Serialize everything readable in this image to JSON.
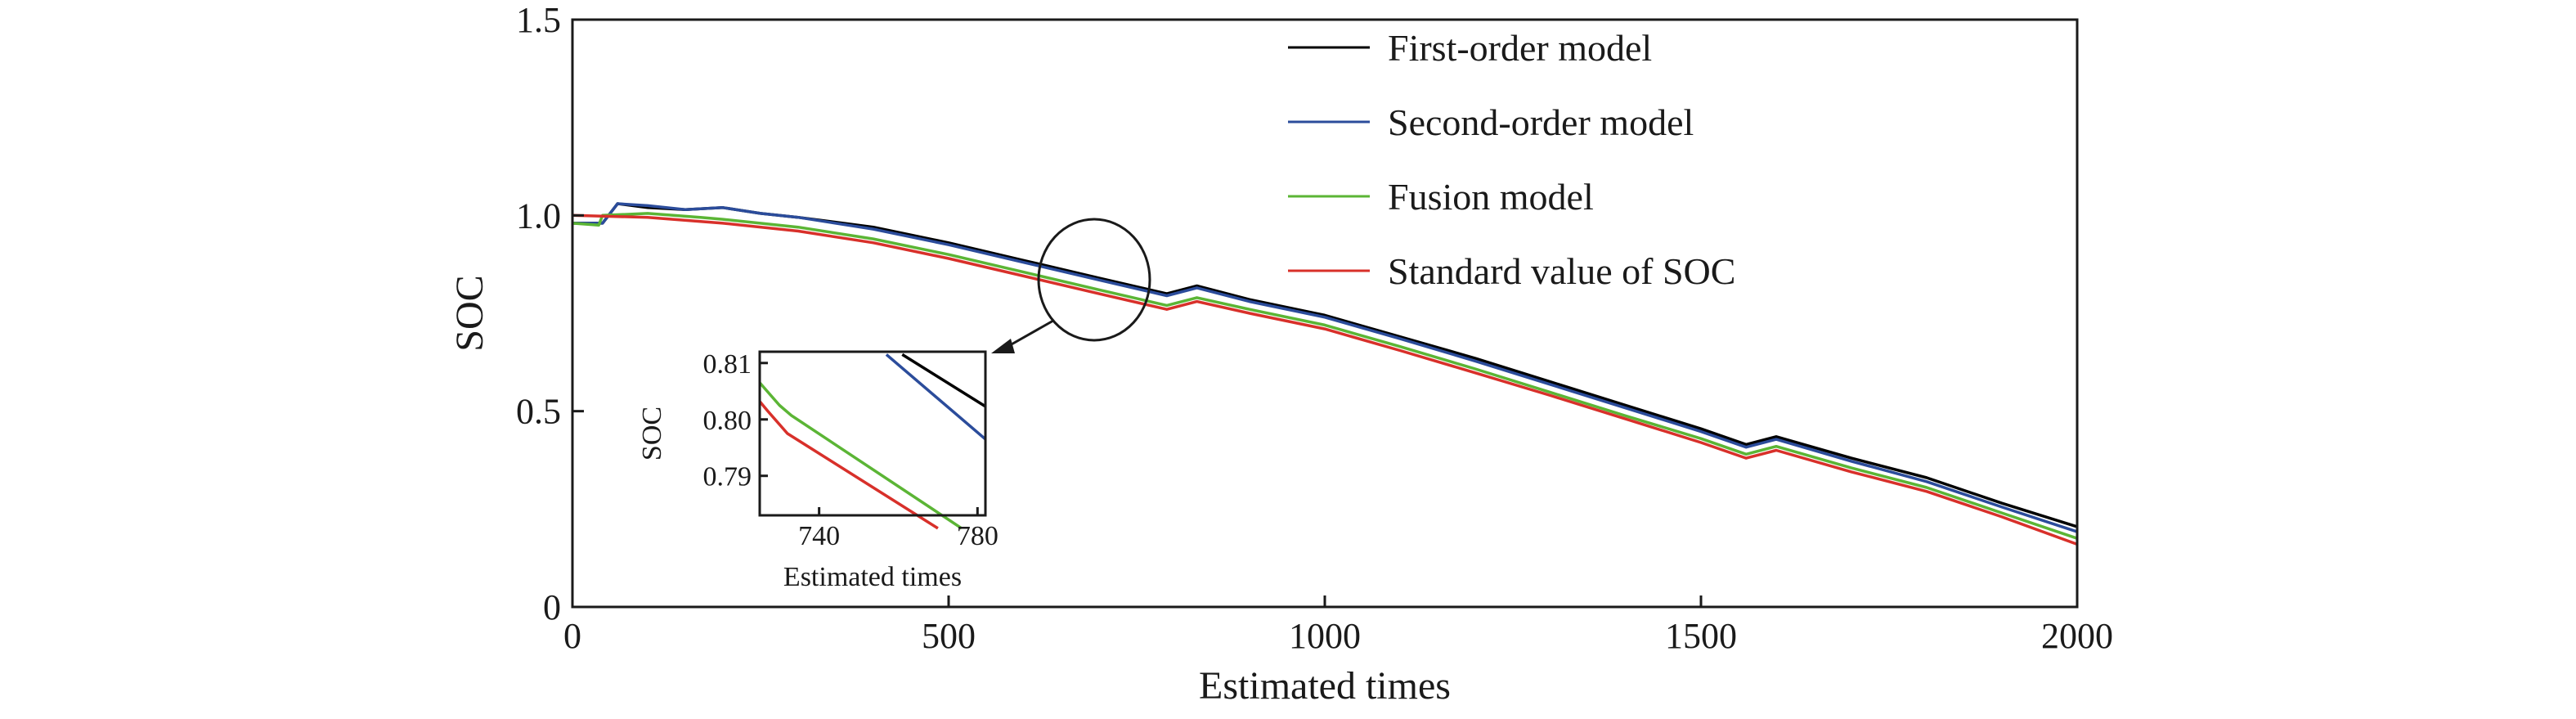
{
  "chart_data": [
    {
      "type": "line",
      "title": "",
      "xlabel": "Estimated times",
      "ylabel": "SOC",
      "xlim": [
        0,
        2000
      ],
      "ylim": [
        0,
        1.5
      ],
      "xticks": [
        0,
        500,
        1000,
        1500,
        2000
      ],
      "xtick_labels": [
        "0",
        "500",
        "1000",
        "1500",
        "2000"
      ],
      "yticks": [
        0,
        0.5,
        1.0,
        1.5
      ],
      "ytick_labels": [
        "0",
        "0.5",
        "1.0",
        "1.5"
      ],
      "grid": false,
      "legend_position": "top-right",
      "series": [
        {
          "name": "First-order model",
          "color": "#000000",
          "x": [
            0,
            40,
            60,
            100,
            150,
            200,
            250,
            300,
            400,
            500,
            600,
            700,
            790,
            830,
            900,
            1000,
            1100,
            1200,
            1300,
            1400,
            1500,
            1560,
            1600,
            1700,
            1800,
            1900,
            2000
          ],
          "y": [
            0.98,
            0.98,
            1.03,
            1.02,
            1.015,
            1.02,
            1.005,
            0.995,
            0.97,
            0.93,
            0.885,
            0.84,
            0.8,
            0.82,
            0.785,
            0.745,
            0.69,
            0.635,
            0.575,
            0.515,
            0.455,
            0.415,
            0.435,
            0.38,
            0.33,
            0.265,
            0.205
          ]
        },
        {
          "name": "Second-order model",
          "color": "#2b4c9b",
          "x": [
            0,
            40,
            60,
            100,
            150,
            200,
            250,
            300,
            400,
            500,
            600,
            700,
            790,
            830,
            900,
            1000,
            1100,
            1200,
            1300,
            1400,
            1500,
            1560,
            1600,
            1700,
            1800,
            1900,
            2000
          ],
          "y": [
            0.98,
            0.98,
            1.03,
            1.025,
            1.015,
            1.02,
            1.005,
            0.995,
            0.965,
            0.925,
            0.88,
            0.835,
            0.795,
            0.815,
            0.78,
            0.74,
            0.685,
            0.628,
            0.568,
            0.508,
            0.448,
            0.408,
            0.428,
            0.372,
            0.32,
            0.255,
            0.192
          ]
        },
        {
          "name": "Fusion model",
          "color": "#5bb535",
          "x": [
            0,
            35,
            40,
            100,
            170,
            200,
            300,
            400,
            500,
            600,
            700,
            790,
            830,
            900,
            1000,
            1100,
            1200,
            1300,
            1400,
            1500,
            1560,
            1600,
            1700,
            1800,
            1900,
            2000
          ],
          "y": [
            0.98,
            0.975,
            1.0,
            1.005,
            0.995,
            0.99,
            0.97,
            0.94,
            0.9,
            0.855,
            0.81,
            0.77,
            0.79,
            0.76,
            0.72,
            0.665,
            0.608,
            0.548,
            0.488,
            0.43,
            0.39,
            0.41,
            0.355,
            0.305,
            0.24,
            0.175
          ]
        },
        {
          "name": "Standard value of SOC",
          "color": "#d8302a",
          "x": [
            0,
            100,
            200,
            300,
            400,
            500,
            600,
            700,
            790,
            830,
            900,
            1000,
            1100,
            1200,
            1300,
            1400,
            1500,
            1560,
            1600,
            1700,
            1800,
            1900,
            2000
          ],
          "y": [
            1.0,
            0.995,
            0.98,
            0.96,
            0.93,
            0.89,
            0.845,
            0.8,
            0.76,
            0.78,
            0.75,
            0.71,
            0.655,
            0.598,
            0.54,
            0.48,
            0.42,
            0.38,
            0.4,
            0.345,
            0.295,
            0.23,
            0.16
          ]
        }
      ]
    },
    {
      "type": "line",
      "title": "",
      "xlabel": "Estimated times",
      "ylabel": "SOC",
      "xlim": [
        725,
        782
      ],
      "ylim": [
        0.783,
        0.812
      ],
      "xticks": [
        740,
        780
      ],
      "xtick_labels": [
        "740",
        "780"
      ],
      "yticks": [
        0.79,
        0.8,
        0.81
      ],
      "ytick_labels": [
        "0.79",
        "0.80",
        "0.81"
      ],
      "grid": false,
      "series": [
        {
          "name": "First-order model",
          "color": "#000000",
          "x": [
            761,
            782
          ],
          "y": [
            0.8115,
            0.8023
          ]
        },
        {
          "name": "Second-order model",
          "color": "#2b4c9b",
          "x": [
            757,
            782
          ],
          "y": [
            0.8115,
            0.7965
          ]
        },
        {
          "name": "Fusion model",
          "color": "#5bb535",
          "x": [
            725,
            730,
            733,
            776
          ],
          "y": [
            0.8065,
            0.8025,
            0.8007,
            0.7807
          ]
        },
        {
          "name": "Standard value of SOC",
          "color": "#d8302a",
          "x": [
            725,
            727,
            732,
            770
          ],
          "y": [
            0.8032,
            0.8015,
            0.7975,
            0.7807
          ]
        }
      ]
    }
  ]
}
